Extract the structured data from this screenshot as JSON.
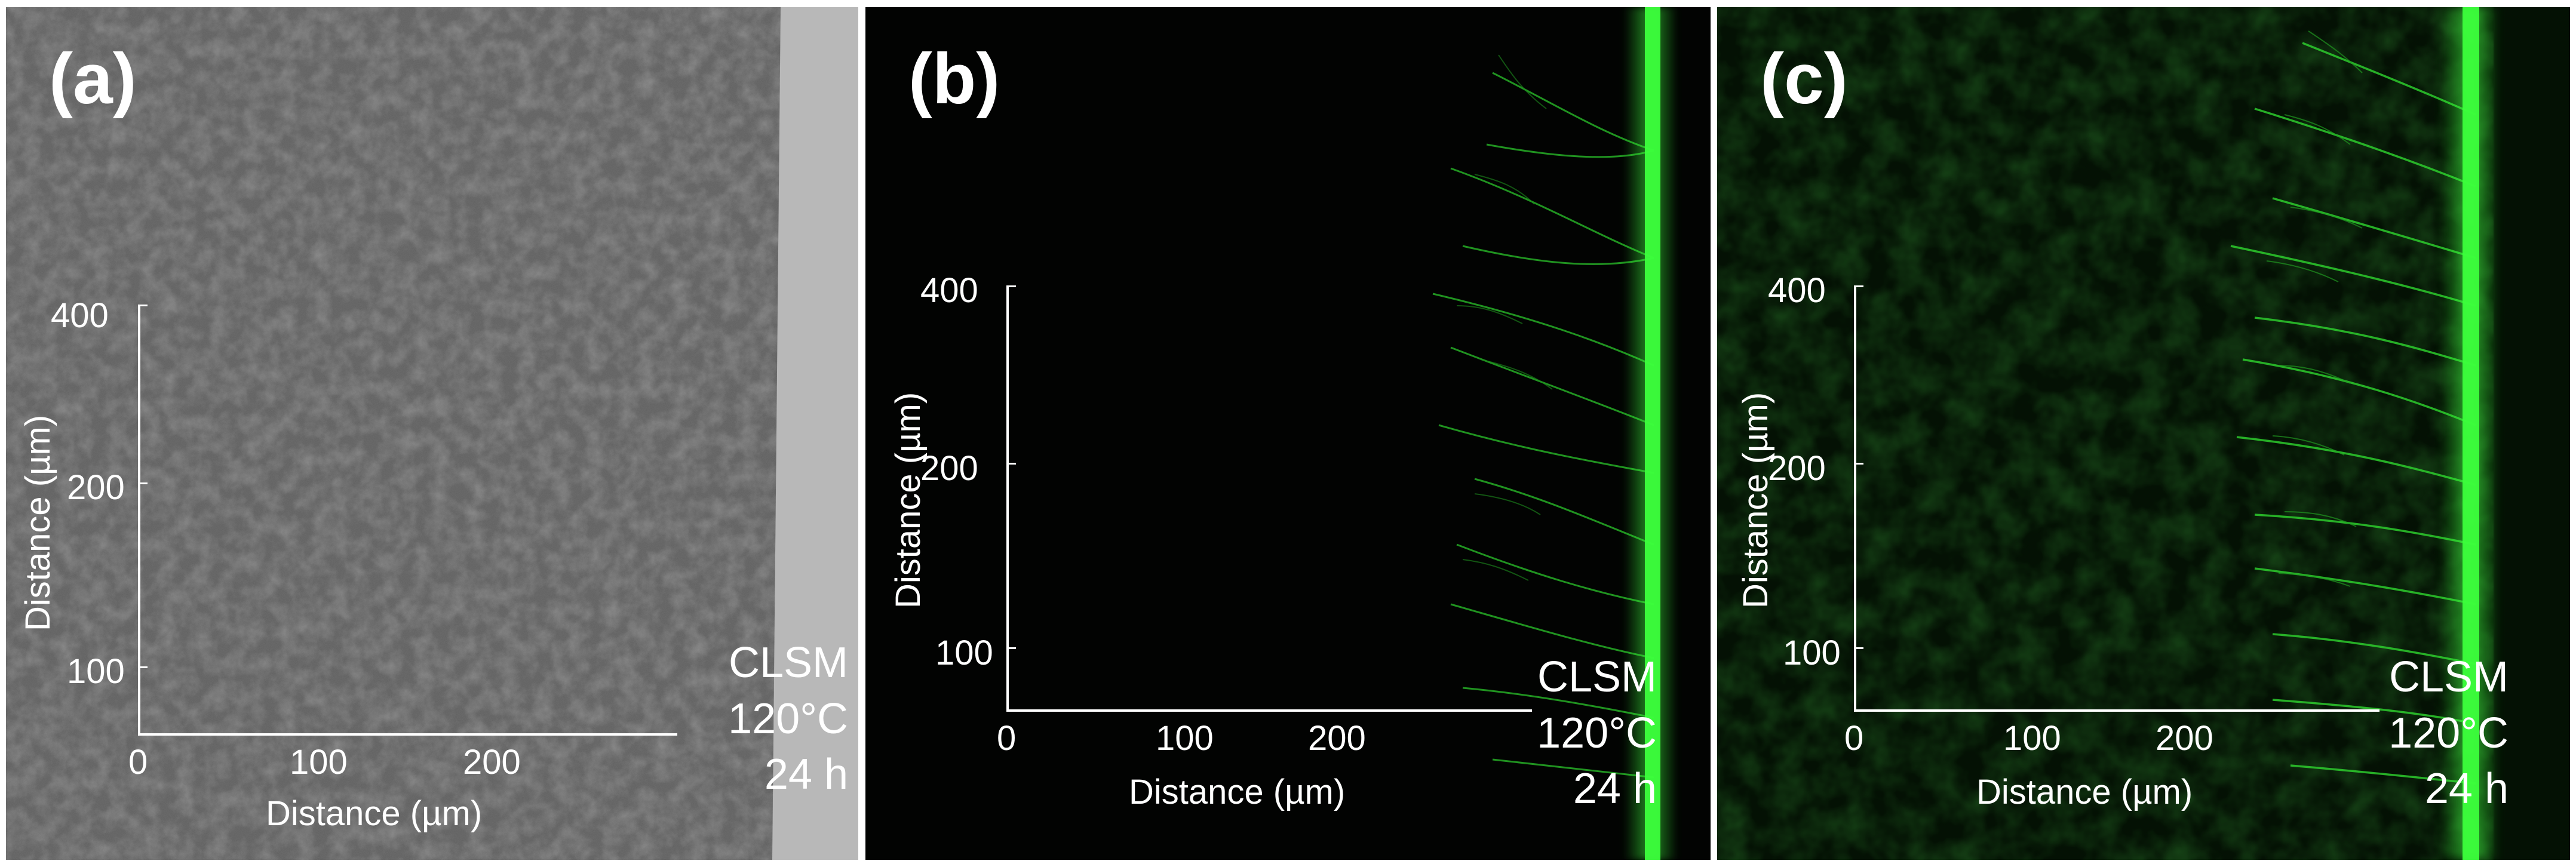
{
  "panels": [
    {
      "label": "(a)",
      "x_ticks": [
        "0",
        "100",
        "200"
      ],
      "y_ticks": [
        "400",
        "200",
        "100"
      ],
      "x_title": "Distance (µm)",
      "y_title": "Distance (µm)",
      "method": "CLSM",
      "temperature": "120°C",
      "duration": "24 h"
    },
    {
      "label": "(b)",
      "x_ticks": [
        "0",
        "100",
        "200"
      ],
      "y_ticks": [
        "400",
        "200",
        "100"
      ],
      "x_title": "Distance (µm)",
      "y_title": "Distance (µm)",
      "method": "CLSM",
      "temperature": "120°C",
      "duration": "24 h"
    },
    {
      "label": "(c)",
      "x_ticks": [
        "0",
        "100",
        "200"
      ],
      "y_ticks": [
        "400",
        "200",
        "100"
      ],
      "x_title": "Distance (µm)",
      "y_title": "Distance (µm)",
      "method": "CLSM",
      "temperature": "120°C",
      "duration": "24 h"
    }
  ],
  "colors": {
    "sem_gray": "#5c5c5c",
    "edge_strip": "#b8b8b8",
    "fluorescence_green": "#33ff33",
    "text": "#ffffff"
  }
}
